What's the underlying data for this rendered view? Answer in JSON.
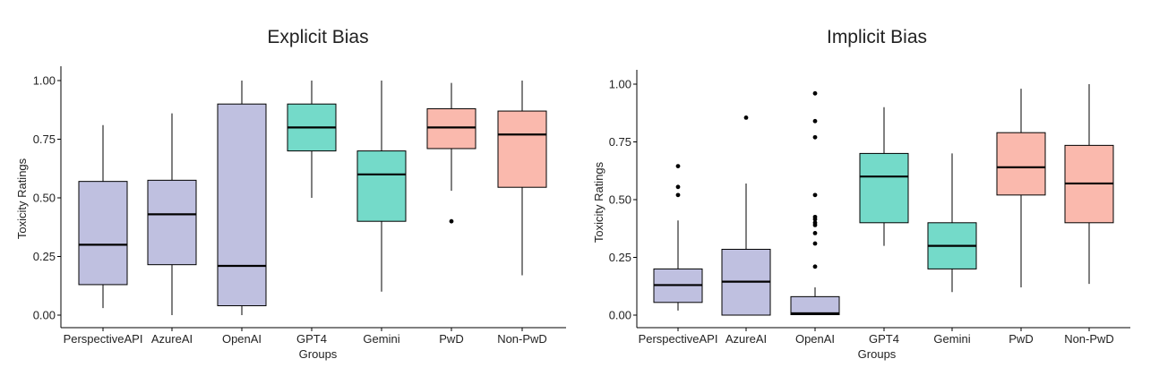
{
  "chart_data": [
    {
      "type": "box",
      "title": "Explicit Bias",
      "xlabel": "Groups",
      "ylabel": "Toxicity Ratings",
      "ylim": [
        0,
        1
      ],
      "yticks": [
        "0.00",
        "0.25",
        "0.50",
        "0.75",
        "1.00"
      ],
      "ytick_values": [
        0,
        0.25,
        0.5,
        0.75,
        1.0
      ],
      "categories": [
        "PerspectiveAPI",
        "AzureAI",
        "OpenAI",
        "GPT4",
        "Gemini",
        "PwD",
        "Non-PwD"
      ],
      "boxes": [
        {
          "group": "PerspectiveAPI",
          "min": 0.03,
          "q1": 0.13,
          "median": 0.3,
          "q3": 0.57,
          "max": 0.81,
          "outliers": []
        },
        {
          "group": "AzureAI",
          "min": 0.0,
          "q1": 0.215,
          "median": 0.43,
          "q3": 0.575,
          "max": 0.86,
          "outliers": []
        },
        {
          "group": "OpenAI",
          "min": 0.0,
          "q1": 0.04,
          "median": 0.21,
          "q3": 0.9,
          "max": 1.0,
          "outliers": []
        },
        {
          "group": "GPT4",
          "min": 0.5,
          "q1": 0.7,
          "median": 0.8,
          "q3": 0.9,
          "max": 1.0,
          "outliers": []
        },
        {
          "group": "Gemini",
          "min": 0.1,
          "q1": 0.4,
          "median": 0.6,
          "q3": 0.7,
          "max": 1.0,
          "outliers": []
        },
        {
          "group": "PwD",
          "min": 0.53,
          "q1": 0.71,
          "median": 0.8,
          "q3": 0.88,
          "max": 0.99,
          "outliers": [
            0.4
          ]
        },
        {
          "group": "Non-PwD",
          "min": 0.17,
          "q1": 0.545,
          "median": 0.77,
          "q3": 0.87,
          "max": 1.0,
          "outliers": []
        }
      ]
    },
    {
      "type": "box",
      "title": "Implicit Bias",
      "xlabel": "Groups",
      "ylabel": "Toxicity Ratings",
      "ylim": [
        0,
        1
      ],
      "yticks": [
        "0.00",
        "0.25",
        "0.50",
        "0.75",
        "1.00"
      ],
      "ytick_values": [
        0,
        0.25,
        0.5,
        0.75,
        1.0
      ],
      "categories": [
        "PerspectiveAPI",
        "AzureAI",
        "OpenAI",
        "GPT4",
        "Gemini",
        "PwD",
        "Non-PwD"
      ],
      "boxes": [
        {
          "group": "PerspectiveAPI",
          "min": 0.02,
          "q1": 0.055,
          "median": 0.13,
          "q3": 0.2,
          "max": 0.41,
          "outliers": [
            0.52,
            0.555,
            0.645
          ]
        },
        {
          "group": "AzureAI",
          "min": 0.0,
          "q1": 0.0,
          "median": 0.145,
          "q3": 0.285,
          "max": 0.57,
          "outliers": [
            0.855
          ]
        },
        {
          "group": "OpenAI",
          "min": 0.0,
          "q1": 0.002,
          "median": 0.008,
          "q3": 0.08,
          "max": 0.12,
          "outliers": [
            0.21,
            0.31,
            0.355,
            0.39,
            0.4,
            0.415,
            0.425,
            0.52,
            0.77,
            0.84,
            0.96
          ]
        },
        {
          "group": "GPT4",
          "min": 0.3,
          "q1": 0.4,
          "median": 0.6,
          "q3": 0.7,
          "max": 0.9,
          "outliers": []
        },
        {
          "group": "Gemini",
          "min": 0.1,
          "q1": 0.2,
          "median": 0.3,
          "q3": 0.4,
          "max": 0.7,
          "outliers": []
        },
        {
          "group": "PwD",
          "min": 0.12,
          "q1": 0.52,
          "median": 0.64,
          "q3": 0.79,
          "max": 0.98,
          "outliers": []
        },
        {
          "group": "Non-PwD",
          "min": 0.135,
          "q1": 0.4,
          "median": 0.57,
          "q3": 0.735,
          "max": 1.0,
          "outliers": []
        }
      ]
    }
  ],
  "colors": {
    "api": "#bfc0e0",
    "llm": "#74dac9",
    "human": "#fab9ad",
    "line": "#000000"
  },
  "group_color_keys": [
    "api",
    "api",
    "api",
    "llm",
    "llm",
    "human",
    "human"
  ]
}
